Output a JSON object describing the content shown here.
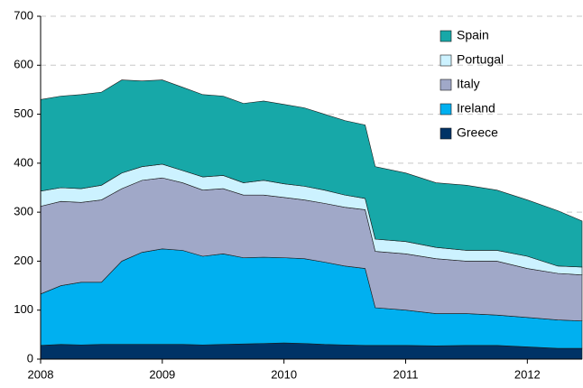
{
  "chart_data": {
    "type": "stacked_area",
    "x": [
      2008,
      2008.167,
      2008.333,
      2008.5,
      2008.667,
      2008.833,
      2009,
      2009.167,
      2009.333,
      2009.5,
      2009.667,
      2009.833,
      2010,
      2010.167,
      2010.333,
      2010.5,
      2010.667,
      2010.75,
      2011,
      2011.25,
      2011.5,
      2011.75,
      2012,
      2012.25,
      2012.45
    ],
    "series": [
      {
        "name": "Greece",
        "color": "#003366",
        "values": [
          28,
          30,
          29,
          30,
          30,
          30,
          30,
          30,
          29,
          30,
          31,
          32,
          33,
          32,
          30,
          29,
          28,
          28,
          28,
          27,
          28,
          28,
          25,
          22,
          22
        ]
      },
      {
        "name": "Ireland",
        "color": "#00b0f0",
        "values": [
          105,
          120,
          128,
          127,
          170,
          188,
          195,
          192,
          181,
          185,
          176,
          176,
          174,
          173,
          168,
          161,
          157,
          77,
          72,
          66,
          65,
          62,
          60,
          58,
          56
        ]
      },
      {
        "name": "Italy",
        "color": "#a0a8c8",
        "values": [
          179,
          172,
          163,
          168,
          148,
          147,
          145,
          138,
          135,
          133,
          128,
          127,
          123,
          120,
          120,
          120,
          120,
          115,
          115,
          112,
          107,
          110,
          100,
          95,
          94
        ]
      },
      {
        "name": "Portugal",
        "color": "#ccf2ff",
        "values": [
          31,
          28,
          28,
          30,
          32,
          28,
          28,
          25,
          27,
          27,
          25,
          30,
          28,
          28,
          27,
          25,
          23,
          25,
          25,
          23,
          22,
          22,
          25,
          15,
          16
        ]
      },
      {
        "name": "Spain",
        "color": "#17a8a8",
        "values": [
          187,
          187,
          192,
          190,
          190,
          175,
          172,
          170,
          168,
          162,
          162,
          162,
          162,
          160,
          155,
          152,
          150,
          148,
          140,
          132,
          133,
          123,
          115,
          113,
          94
        ]
      }
    ],
    "xlim": [
      2008,
      2012.45
    ],
    "xticks": [
      2008,
      2009,
      2010,
      2011,
      2012
    ],
    "ylim": [
      0,
      700
    ],
    "yticks": [
      0,
      100,
      200,
      300,
      400,
      500,
      600,
      700
    ],
    "grid": true,
    "legend": "upper right"
  }
}
